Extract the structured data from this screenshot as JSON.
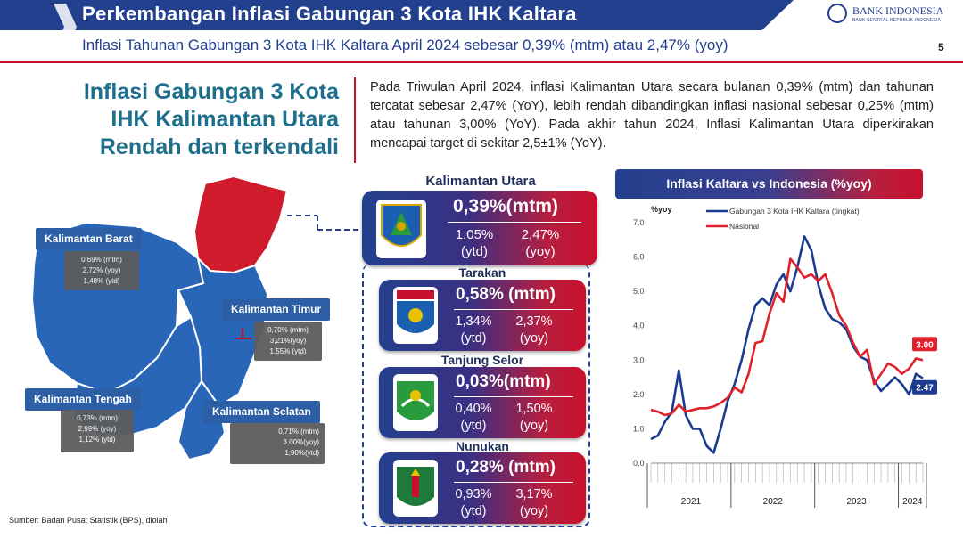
{
  "header": {
    "title": "Perkembangan Inflasi Gabungan 3 Kota IHK Kaltara",
    "subtitle": "Inflasi Tahunan Gabungan 3 Kota IHK Kaltara April 2024 sebesar 0,39% (mtm) atau 2,47% (yoy)",
    "page_number": "5",
    "logo_name": "BANK INDONESIA",
    "logo_tagline": "BANK SENTRAL REPUBLIK INDONESIA"
  },
  "headline": [
    "Inflasi Gabungan 3 Kota",
    "IHK Kalimantan Utara",
    "Rendah dan terkendali"
  ],
  "paragraph": "Pada Triwulan April 2024, inflasi Kalimantan Utara secara bulanan 0,39% (mtm) dan tahunan tercatat sebesar 2,47% (YoY), lebih rendah dibandingkan inflasi nasional sebesar 0,25% (mtm) atau tahunan 3,00% (YoY). Pada akhir tahun 2024, Inflasi Kalimantan Utara diperkirakan mencapai target di sekitar 2,5±1% (YoY).",
  "map_labels": [
    {
      "name": "Kalimantan Barat",
      "lines": [
        "0,69% (mtm)",
        "2,72% (yoy)",
        "1,48% (ytd)"
      ]
    },
    {
      "name": "Kalimantan Timur",
      "lines": [
        "0,70% (mtm)",
        "3,21%(yoy)",
        "1,55% (ytd)"
      ]
    },
    {
      "name": "Kalimantan Tengah",
      "lines": [
        "0,73% (mtm)",
        "2,99% (yoy)",
        "1,12% (ytd)"
      ]
    },
    {
      "name": "Kalimantan Selatan",
      "lines": [
        "0,71% (mtm)",
        "3,00%(yoy)",
        "1,90%(ytd)"
      ]
    }
  ],
  "cards": [
    {
      "name": "Kalimantan Utara",
      "mtm": "0,39%(mtm)",
      "ytd": "1,05%",
      "yoy": "2,47%",
      "ytd_label": "(ytd)",
      "yoy_label": "(yoy)"
    },
    {
      "name": "Tarakan",
      "mtm": "0,58% (mtm)",
      "ytd": "1,34%",
      "yoy": "2,37%",
      "ytd_label": "(ytd)",
      "yoy_label": "(yoy)"
    },
    {
      "name": "Tanjung Selor",
      "mtm": "0,03%(mtm)",
      "ytd": "0,40%",
      "yoy": "1,50%",
      "ytd_label": "(ytd)",
      "yoy_label": "(yoy)"
    },
    {
      "name": "Nunukan",
      "mtm": "0,28% (mtm)",
      "ytd": "0,93%",
      "yoy": "3,17%",
      "ytd_label": "(ytd)",
      "yoy_label": "(yoy)"
    }
  ],
  "source": "Sumber: Badan Pusat Statistik (BPS), diolah",
  "colors": {
    "primary_blue": "#23408e",
    "accent_red": "#c8102e",
    "kaltara_line": "#1a3b8f",
    "national_line": "#e0212b",
    "map_blue": "#2a66b8",
    "map_red": "#cf1b2b"
  },
  "chart_data": {
    "type": "line",
    "title": "Inflasi Kaltara vs Indonesia (%yoy)",
    "ylabel": "%yoy",
    "ylim": [
      0,
      7
    ],
    "yticks": [
      "0.0",
      "1.0",
      "2.0",
      "3.0",
      "4.0",
      "5.0",
      "6.0",
      "7.0"
    ],
    "grid": false,
    "legend_position": "top",
    "year_labels": [
      "2021",
      "2022",
      "2023",
      "2024"
    ],
    "month_count": 40,
    "series": [
      {
        "name": "Gabungan 3 Kota IHK Kaltara (tingkat)",
        "color": "#1a3b8f",
        "values": [
          0.7,
          0.8,
          1.2,
          1.5,
          2.7,
          1.4,
          1.0,
          1.0,
          0.5,
          0.3,
          1.0,
          1.8,
          2.3,
          3.0,
          3.9,
          4.6,
          4.8,
          4.6,
          5.2,
          5.5,
          5.0,
          5.7,
          6.6,
          6.2,
          5.2,
          4.5,
          4.2,
          4.1,
          3.9,
          3.4,
          3.1,
          3.0,
          2.4,
          2.1,
          2.3,
          2.5,
          2.3,
          2.0,
          2.6,
          2.47
        ]
      },
      {
        "name": "Nasional",
        "color": "#e0212b",
        "values": [
          1.55,
          1.5,
          1.4,
          1.45,
          1.7,
          1.5,
          1.55,
          1.6,
          1.6,
          1.65,
          1.75,
          1.9,
          2.2,
          2.06,
          2.6,
          3.5,
          3.55,
          4.35,
          4.95,
          4.7,
          5.95,
          5.7,
          5.4,
          5.5,
          5.3,
          5.5,
          4.95,
          4.3,
          4.0,
          3.5,
          3.1,
          3.3,
          2.3,
          2.6,
          2.9,
          2.8,
          2.6,
          2.75,
          3.05,
          3.0
        ]
      }
    ],
    "end_labels": {
      "kaltara": "2.47",
      "national": "3.00"
    }
  }
}
